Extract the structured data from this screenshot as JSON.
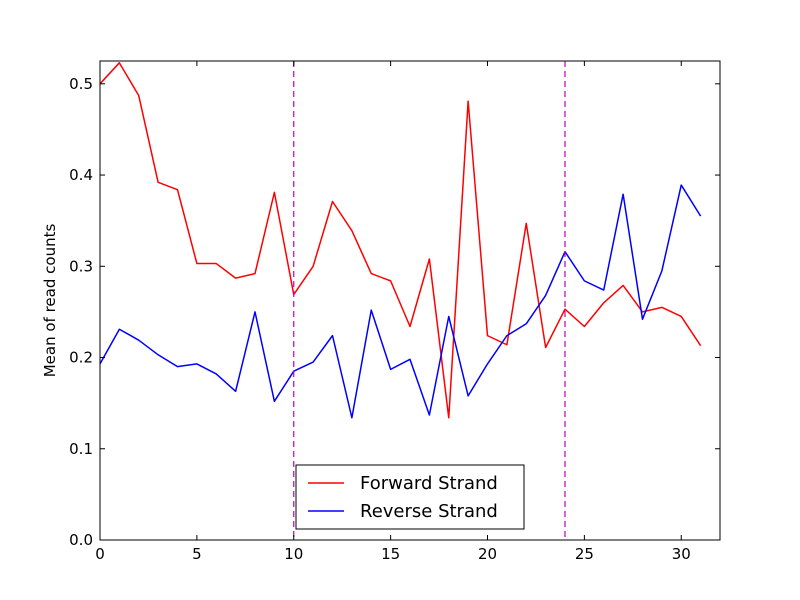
{
  "chart_data": {
    "type": "line",
    "title": "",
    "xlabel": "",
    "ylabel": "Mean of read counts",
    "xlim": [
      0,
      32
    ],
    "ylim": [
      0.0,
      0.525
    ],
    "xticks": [
      0,
      5,
      10,
      15,
      20,
      25,
      30
    ],
    "xtick_labels": [
      "0",
      "5",
      "10",
      "15",
      "20",
      "25",
      "30"
    ],
    "yticks": [
      0.0,
      0.1,
      0.2,
      0.3,
      0.4,
      0.5
    ],
    "ytick_labels": [
      "0.0",
      "0.1",
      "0.2",
      "0.3",
      "0.4",
      "0.5"
    ],
    "grid": false,
    "legend_position": "bottom-center",
    "x": [
      0,
      1,
      2,
      3,
      4,
      5,
      6,
      7,
      8,
      9,
      10,
      11,
      12,
      13,
      14,
      15,
      16,
      17,
      18,
      19,
      20,
      21,
      22,
      23,
      24,
      25,
      26,
      27,
      28,
      29,
      30,
      31
    ],
    "series": [
      {
        "name": "Forward Strand",
        "color": "#ff0000",
        "values": [
          0.5,
          0.523,
          0.487,
          0.392,
          0.384,
          0.303,
          0.303,
          0.287,
          0.292,
          0.381,
          0.269,
          0.3,
          0.371,
          0.339,
          0.292,
          0.284,
          0.234,
          0.308,
          0.134,
          0.481,
          0.224,
          0.214,
          0.347,
          0.211,
          0.253,
          0.234,
          0.26,
          0.279,
          0.25,
          0.255,
          0.245,
          0.213
        ]
      },
      {
        "name": "Reverse Strand",
        "color": "#0000ff",
        "values": [
          0.193,
          0.231,
          0.219,
          0.203,
          0.19,
          0.193,
          0.182,
          0.163,
          0.25,
          0.152,
          0.185,
          0.195,
          0.224,
          0.134,
          0.252,
          0.187,
          0.198,
          0.137,
          0.245,
          0.158,
          0.193,
          0.224,
          0.237,
          0.268,
          0.316,
          0.284,
          0.274,
          0.379,
          0.242,
          0.295,
          0.389,
          0.355
        ]
      }
    ],
    "vlines": [
      {
        "x": 10,
        "color": "#bf00bf"
      },
      {
        "x": 24,
        "color": "#bf00bf"
      }
    ]
  }
}
